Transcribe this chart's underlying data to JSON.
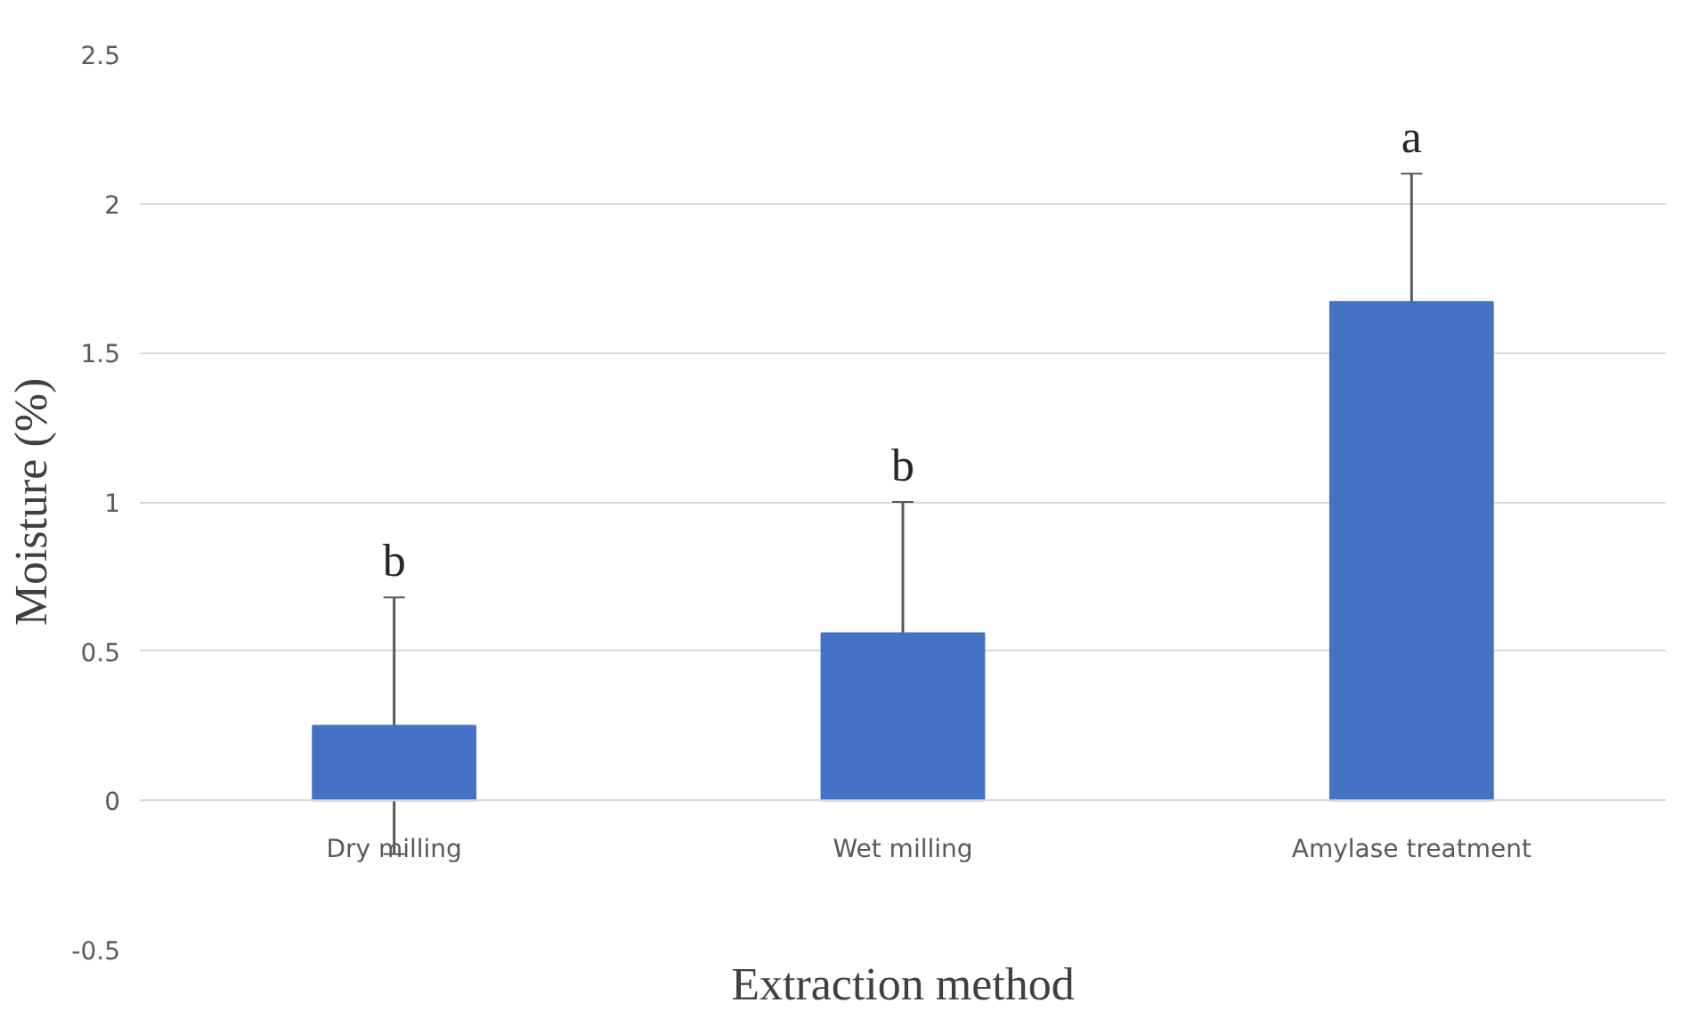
{
  "chart_data": {
    "type": "bar",
    "xlabel": "Extraction method",
    "ylabel": "Moisture (%)",
    "categories": [
      "Dry milling",
      "Wet milling",
      "Amylase treatment"
    ],
    "values": [
      0.25,
      0.56,
      1.67
    ],
    "errors": [
      0.43,
      0.44,
      0.43
    ],
    "color": "#4472c4",
    "ylim": [
      -0.5,
      2.5
    ],
    "yticks": [
      -0.5,
      0,
      0.5,
      1,
      1.5,
      2,
      2.5
    ],
    "grid": "y",
    "annotations": [
      {
        "text": "b",
        "x": "Dry milling",
        "y": 0.68
      },
      {
        "text": "b",
        "x": "Wet milling",
        "y": 1.0
      },
      {
        "text": "a",
        "x": "Amylase treatment",
        "y": 2.1
      }
    ]
  }
}
